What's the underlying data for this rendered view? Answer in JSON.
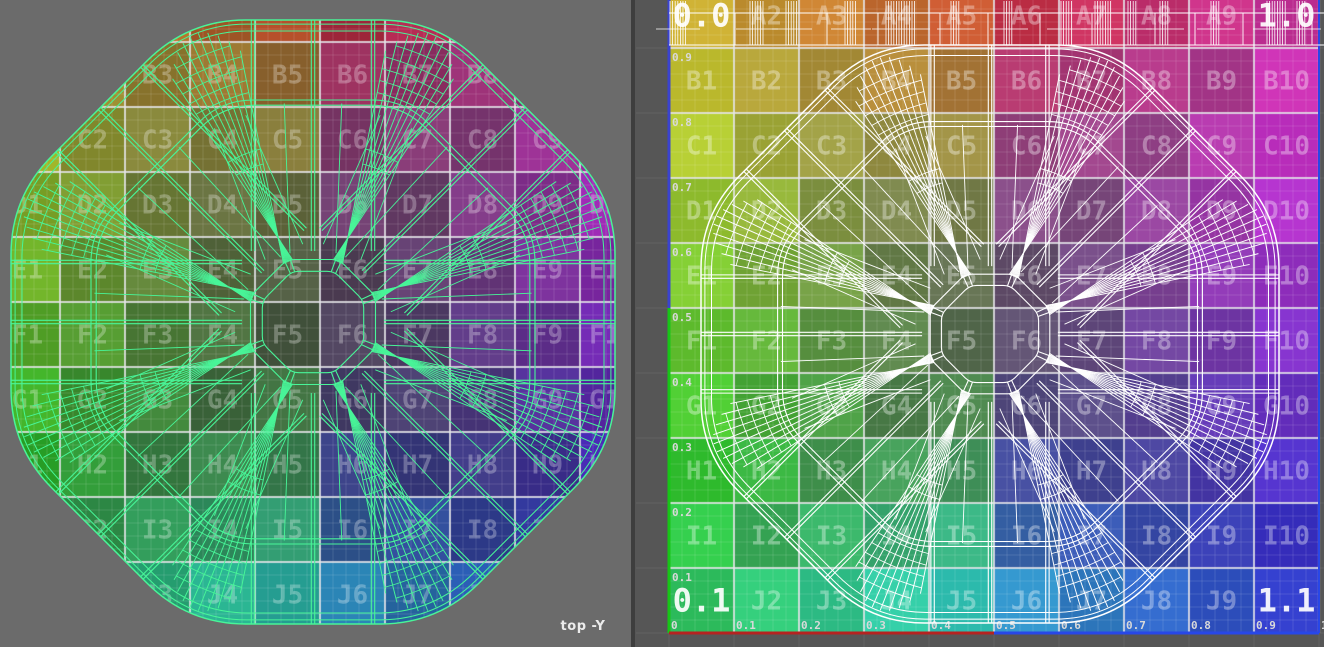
{
  "left_viewport": {
    "label": "top -Y",
    "background": "#6b6b6b",
    "wireframe_color": "#48f598"
  },
  "right_viewport": {
    "background": "#565656",
    "wireframe_color": "#ffffff",
    "axis_labels_left": [
      "0.9",
      "0.8",
      "0.7",
      "0.6",
      "0.5",
      "0.4",
      "0.3",
      "0.2",
      "0.1"
    ],
    "axis_labels_bottom": [
      "0",
      "0.1",
      "0.2",
      "0.3",
      "0.4",
      "0.5",
      "0.6",
      "0.7",
      "0.8",
      "0.9",
      "1"
    ],
    "axis_colors": {
      "v_axis_top": "#3a43cf",
      "v_axis_bottom": "#17c517",
      "u_axis_left": "#b52320",
      "u_axis_right": "#2847e8",
      "right_border": "#2847e8"
    }
  },
  "texture": {
    "rows": [
      "A",
      "B",
      "C",
      "D",
      "E",
      "F",
      "G",
      "H",
      "I",
      "J"
    ],
    "cols": [
      "1",
      "2",
      "3",
      "4",
      "5",
      "6",
      "7",
      "8",
      "9",
      "10"
    ],
    "corner_labels": {
      "top_left": "0.0",
      "top_right": "1.0",
      "bottom_left": "0.1",
      "bottom_right": "1.1"
    },
    "hue_corners": {
      "tl": 48,
      "tr": 318,
      "bl": 140,
      "br": 235
    },
    "cell_border_color": "rgba(228,228,232,0.75)",
    "fine_grid_color": "rgba(255,255,255,0.12)",
    "label_color": "#ffffff",
    "corner_label_color": "rgba(255,255,255,0.92)",
    "axis_number_color": "#d9d9d9"
  },
  "divider_color": "#3e3e3e"
}
